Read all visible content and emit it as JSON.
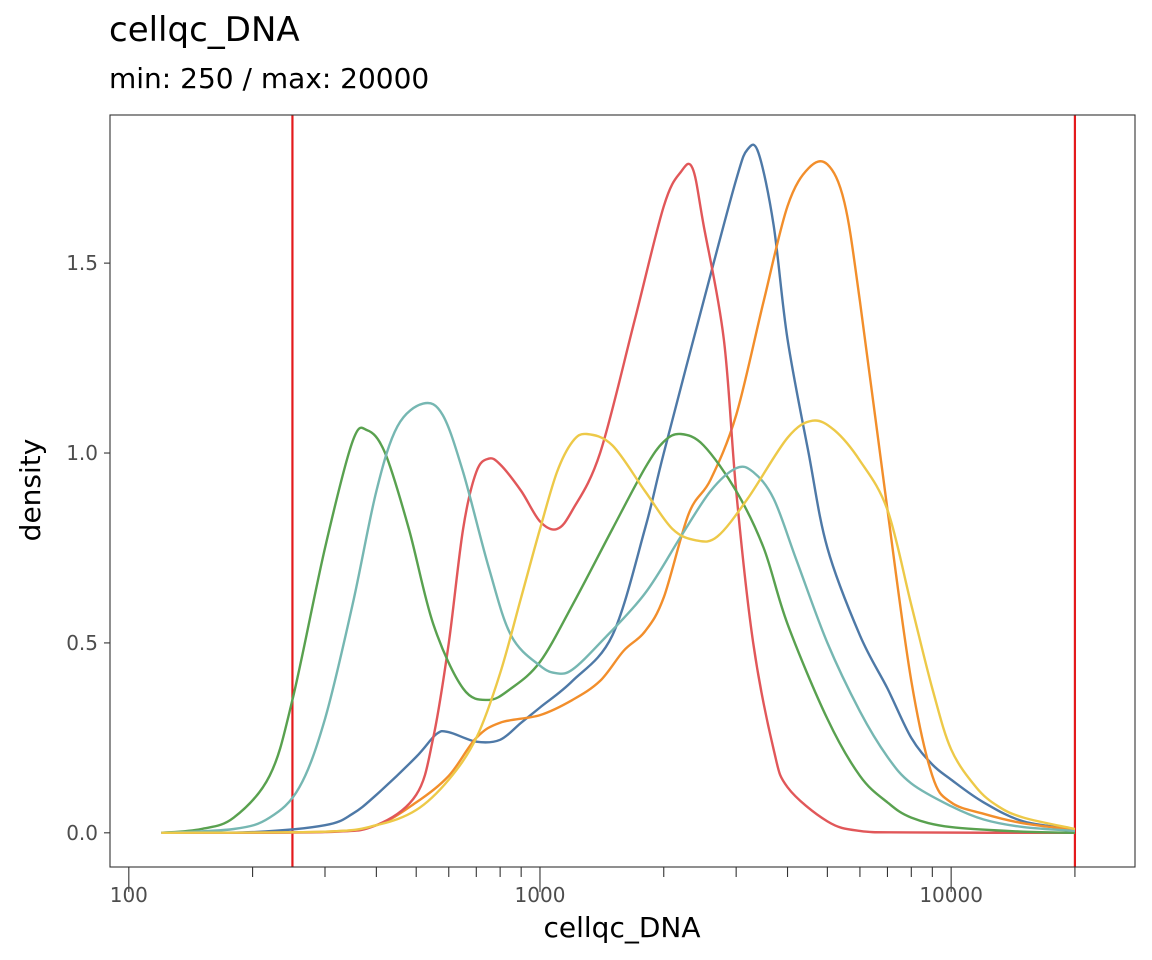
{
  "title": "cellqc_DNA",
  "subtitle": "min: 250 / max: 20000",
  "chart_data": {
    "type": "line",
    "title": "cellqc_DNA",
    "subtitle": "min: 250 / max: 20000",
    "xlabel": "cellqc_DNA",
    "ylabel": "density",
    "x_scale": "log10",
    "xlim": [
      90,
      28000
    ],
    "ylim": [
      -0.09,
      1.89
    ],
    "x_ticks": [
      100,
      1000,
      10000
    ],
    "x_tick_labels": [
      "100",
      "1000",
      "10000"
    ],
    "y_ticks": [
      0.0,
      0.5,
      1.0,
      1.5
    ],
    "y_tick_labels": [
      "0.0",
      "0.5",
      "1.0",
      "1.5"
    ],
    "grid": false,
    "legend": "none",
    "vlines": [
      {
        "x": 250,
        "color": "#e41a1c"
      },
      {
        "x": 20000,
        "color": "#e41a1c"
      }
    ],
    "series": [
      {
        "color": "#4e79a7",
        "points": [
          [
            120,
            0
          ],
          [
            200,
            0.002
          ],
          [
            300,
            0.02
          ],
          [
            350,
            0.05
          ],
          [
            400,
            0.1
          ],
          [
            500,
            0.2
          ],
          [
            560,
            0.26
          ],
          [
            600,
            0.265
          ],
          [
            700,
            0.24
          ],
          [
            800,
            0.245
          ],
          [
            900,
            0.29
          ],
          [
            1000,
            0.33
          ],
          [
            1200,
            0.4
          ],
          [
            1500,
            0.52
          ],
          [
            1800,
            0.8
          ],
          [
            2000,
            1.0
          ],
          [
            2500,
            1.4
          ],
          [
            3000,
            1.72
          ],
          [
            3200,
            1.8
          ],
          [
            3400,
            1.79
          ],
          [
            3700,
            1.6
          ],
          [
            4000,
            1.3
          ],
          [
            4500,
            1.0
          ],
          [
            5000,
            0.75
          ],
          [
            6000,
            0.52
          ],
          [
            7000,
            0.38
          ],
          [
            8000,
            0.25
          ],
          [
            9000,
            0.18
          ],
          [
            10000,
            0.14
          ],
          [
            12000,
            0.08
          ],
          [
            15000,
            0.03
          ],
          [
            20000,
            0.01
          ]
        ]
      },
      {
        "color": "#f28e2b",
        "points": [
          [
            120,
            0
          ],
          [
            300,
            0.003
          ],
          [
            400,
            0.02
          ],
          [
            500,
            0.08
          ],
          [
            600,
            0.15
          ],
          [
            700,
            0.25
          ],
          [
            800,
            0.29
          ],
          [
            1000,
            0.31
          ],
          [
            1200,
            0.35
          ],
          [
            1400,
            0.4
          ],
          [
            1600,
            0.48
          ],
          [
            1800,
            0.53
          ],
          [
            2000,
            0.62
          ],
          [
            2300,
            0.84
          ],
          [
            2600,
            0.93
          ],
          [
            3000,
            1.1
          ],
          [
            3500,
            1.4
          ],
          [
            4000,
            1.65
          ],
          [
            4500,
            1.75
          ],
          [
            5000,
            1.76
          ],
          [
            5500,
            1.66
          ],
          [
            6000,
            1.4
          ],
          [
            7000,
            0.85
          ],
          [
            8000,
            0.4
          ],
          [
            9000,
            0.15
          ],
          [
            10000,
            0.08
          ],
          [
            12000,
            0.05
          ],
          [
            15000,
            0.025
          ],
          [
            20000,
            0.008
          ]
        ]
      },
      {
        "color": "#e15759",
        "points": [
          [
            120,
            0
          ],
          [
            300,
            0.002
          ],
          [
            400,
            0.02
          ],
          [
            500,
            0.1
          ],
          [
            550,
            0.25
          ],
          [
            600,
            0.5
          ],
          [
            650,
            0.8
          ],
          [
            700,
            0.95
          ],
          [
            750,
            0.985
          ],
          [
            800,
            0.97
          ],
          [
            900,
            0.9
          ],
          [
            1000,
            0.82
          ],
          [
            1100,
            0.8
          ],
          [
            1200,
            0.85
          ],
          [
            1400,
            1.0
          ],
          [
            1700,
            1.35
          ],
          [
            2000,
            1.65
          ],
          [
            2200,
            1.74
          ],
          [
            2350,
            1.75
          ],
          [
            2500,
            1.6
          ],
          [
            2800,
            1.3
          ],
          [
            3000,
            0.9
          ],
          [
            3300,
            0.5
          ],
          [
            3700,
            0.22
          ],
          [
            4000,
            0.12
          ],
          [
            5000,
            0.03
          ],
          [
            6000,
            0.005
          ],
          [
            8000,
            0.001
          ],
          [
            20000,
            0
          ]
        ]
      },
      {
        "color": "#59a14f",
        "points": [
          [
            120,
            0
          ],
          [
            150,
            0.01
          ],
          [
            180,
            0.04
          ],
          [
            220,
            0.15
          ],
          [
            250,
            0.35
          ],
          [
            300,
            0.75
          ],
          [
            350,
            1.03
          ],
          [
            380,
            1.06
          ],
          [
            420,
            1.0
          ],
          [
            480,
            0.8
          ],
          [
            550,
            0.55
          ],
          [
            650,
            0.38
          ],
          [
            750,
            0.35
          ],
          [
            850,
            0.38
          ],
          [
            1000,
            0.45
          ],
          [
            1200,
            0.6
          ],
          [
            1500,
            0.8
          ],
          [
            1800,
            0.96
          ],
          [
            2000,
            1.03
          ],
          [
            2200,
            1.05
          ],
          [
            2500,
            1.02
          ],
          [
            3000,
            0.9
          ],
          [
            3500,
            0.75
          ],
          [
            4000,
            0.55
          ],
          [
            5000,
            0.3
          ],
          [
            6000,
            0.15
          ],
          [
            7000,
            0.08
          ],
          [
            8000,
            0.04
          ],
          [
            10000,
            0.015
          ],
          [
            15000,
            0.003
          ],
          [
            20000,
            0
          ]
        ]
      },
      {
        "color": "#76b7b2",
        "points": [
          [
            120,
            0
          ],
          [
            180,
            0.01
          ],
          [
            220,
            0.04
          ],
          [
            260,
            0.12
          ],
          [
            300,
            0.3
          ],
          [
            350,
            0.6
          ],
          [
            400,
            0.9
          ],
          [
            450,
            1.07
          ],
          [
            520,
            1.13
          ],
          [
            580,
            1.1
          ],
          [
            650,
            0.95
          ],
          [
            750,
            0.7
          ],
          [
            850,
            0.52
          ],
          [
            1000,
            0.44
          ],
          [
            1100,
            0.42
          ],
          [
            1200,
            0.43
          ],
          [
            1400,
            0.5
          ],
          [
            1800,
            0.63
          ],
          [
            2200,
            0.78
          ],
          [
            2600,
            0.9
          ],
          [
            3000,
            0.96
          ],
          [
            3300,
            0.95
          ],
          [
            3700,
            0.88
          ],
          [
            4200,
            0.72
          ],
          [
            5000,
            0.5
          ],
          [
            6000,
            0.32
          ],
          [
            7000,
            0.2
          ],
          [
            8000,
            0.13
          ],
          [
            10000,
            0.07
          ],
          [
            12000,
            0.035
          ],
          [
            15000,
            0.015
          ],
          [
            20000,
            0.005
          ]
        ]
      },
      {
        "color": "#edc948",
        "points": [
          [
            120,
            0
          ],
          [
            300,
            0.003
          ],
          [
            400,
            0.02
          ],
          [
            500,
            0.06
          ],
          [
            600,
            0.14
          ],
          [
            700,
            0.25
          ],
          [
            800,
            0.42
          ],
          [
            900,
            0.62
          ],
          [
            1000,
            0.8
          ],
          [
            1100,
            0.95
          ],
          [
            1200,
            1.03
          ],
          [
            1300,
            1.05
          ],
          [
            1500,
            1.02
          ],
          [
            1800,
            0.9
          ],
          [
            2100,
            0.8
          ],
          [
            2400,
            0.77
          ],
          [
            2700,
            0.78
          ],
          [
            3200,
            0.88
          ],
          [
            4000,
            1.04
          ],
          [
            4600,
            1.085
          ],
          [
            5200,
            1.06
          ],
          [
            6000,
            0.98
          ],
          [
            7000,
            0.85
          ],
          [
            8000,
            0.6
          ],
          [
            9000,
            0.38
          ],
          [
            10000,
            0.22
          ],
          [
            11500,
            0.12
          ],
          [
            13000,
            0.07
          ],
          [
            15000,
            0.04
          ],
          [
            20000,
            0.01
          ]
        ]
      }
    ]
  }
}
